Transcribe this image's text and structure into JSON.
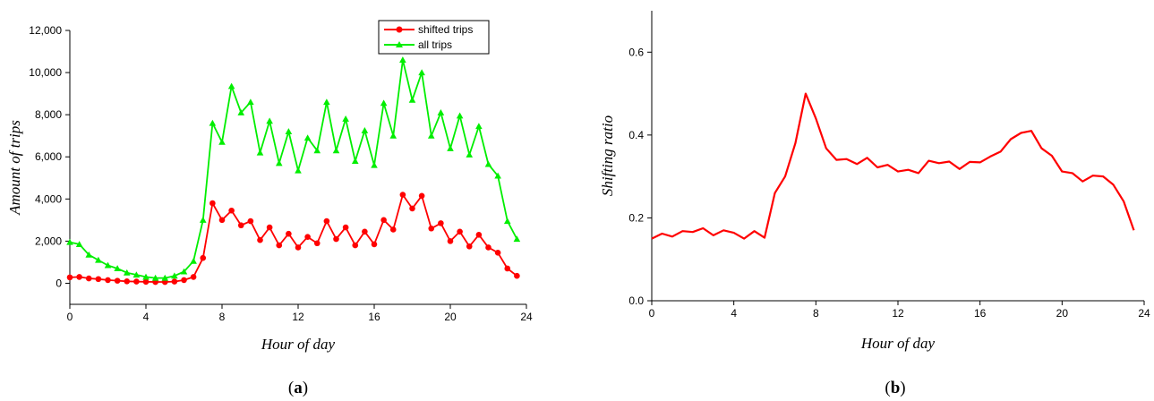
{
  "colors": {
    "shifted": "#ff0000",
    "all": "#00ee00",
    "ratio": "#ff0000"
  },
  "panels": {
    "a": "a",
    "b": "b"
  },
  "chart_data": [
    {
      "id": "a",
      "type": "line",
      "xlabel": "Hour of day",
      "ylabel": "Amount of trips",
      "xlim": [
        0,
        24
      ],
      "ylim": [
        -1000,
        12000
      ],
      "xticks": [
        0,
        4,
        8,
        12,
        16,
        20,
        24
      ],
      "yticks": [
        0,
        2000,
        4000,
        6000,
        8000,
        10000,
        12000
      ],
      "ytick_labels": [
        "0",
        "2,000",
        "4,000",
        "6,000",
        "8,000",
        "10,000",
        "12,000"
      ],
      "grid": false,
      "legend": "top-center",
      "series": [
        {
          "name": "shifted trips",
          "marker": "circle",
          "color": "#ff0000",
          "x": [
            0,
            0.5,
            1,
            1.5,
            2,
            2.5,
            3,
            3.5,
            4,
            4.5,
            5,
            5.5,
            6,
            6.5,
            7,
            7.5,
            8,
            8.5,
            9,
            9.5,
            10,
            10.5,
            11,
            11.5,
            12,
            12.5,
            13,
            13.5,
            14,
            14.5,
            15,
            15.5,
            16,
            16.5,
            17,
            17.5,
            18,
            18.5,
            19,
            19.5,
            20,
            20.5,
            21,
            21.5,
            22,
            22.5,
            23,
            23.5
          ],
          "values": [
            280,
            300,
            230,
            200,
            150,
            120,
            90,
            80,
            70,
            60,
            60,
            80,
            150,
            300,
            1200,
            3800,
            3000,
            3450,
            2750,
            2950,
            2050,
            2650,
            1800,
            2350,
            1700,
            2200,
            1900,
            2950,
            2100,
            2650,
            1800,
            2450,
            1850,
            3000,
            2550,
            4200,
            3550,
            4150,
            2600,
            2850,
            2000,
            2450,
            1750,
            2300,
            1700,
            1450,
            700,
            350
          ]
        },
        {
          "name": "all trips",
          "marker": "triangle",
          "color": "#00ee00",
          "x": [
            0,
            0.5,
            1,
            1.5,
            2,
            2.5,
            3,
            3.5,
            4,
            4.5,
            5,
            5.5,
            6,
            6.5,
            7,
            7.5,
            8,
            8.5,
            9,
            9.5,
            10,
            10.5,
            11,
            11.5,
            12,
            12.5,
            13,
            13.5,
            14,
            14.5,
            15,
            15.5,
            16,
            16.5,
            17,
            17.5,
            18,
            18.5,
            19,
            19.5,
            20,
            20.5,
            21,
            21.5,
            22,
            22.5,
            23,
            23.5
          ],
          "values": [
            1950,
            1850,
            1350,
            1100,
            850,
            700,
            500,
            400,
            300,
            250,
            250,
            350,
            550,
            1050,
            3000,
            7600,
            6700,
            9350,
            8100,
            8600,
            6200,
            7700,
            5700,
            7200,
            5350,
            6900,
            6300,
            8600,
            6300,
            7800,
            5800,
            7250,
            5600,
            8550,
            7000,
            10600,
            8700,
            10000,
            7000,
            8100,
            6400,
            7950,
            6100,
            7450,
            5650,
            5100,
            2950,
            2100
          ]
        }
      ]
    },
    {
      "id": "b",
      "type": "line",
      "xlabel": "Hour of day",
      "ylabel": "Shifting ratio",
      "xlim": [
        0,
        24
      ],
      "ylim": [
        0,
        0.7
      ],
      "xticks": [
        0,
        4,
        8,
        12,
        16,
        20,
        24
      ],
      "yticks": [
        0,
        0.2,
        0.4,
        0.6
      ],
      "ytick_labels": [
        "0.0",
        "0.2",
        "0.4",
        "0.6"
      ],
      "grid": false,
      "series": [
        {
          "color": "#ff0000",
          "x": [
            0,
            0.5,
            1,
            1.5,
            2,
            2.5,
            3,
            3.5,
            4,
            4.5,
            5,
            5.5,
            6,
            6.5,
            7,
            7.5,
            8,
            8.5,
            9,
            9.5,
            10,
            10.5,
            11,
            11.5,
            12,
            12.5,
            13,
            13.5,
            14,
            14.5,
            15,
            15.5,
            16,
            16.5,
            17,
            17.5,
            18,
            18.5,
            19,
            19.5,
            20,
            20.5,
            21,
            21.5,
            22,
            22.5,
            23,
            23.5
          ],
          "values": [
            0.15,
            0.162,
            0.155,
            0.168,
            0.166,
            0.175,
            0.158,
            0.17,
            0.164,
            0.15,
            0.168,
            0.152,
            0.26,
            0.3,
            0.38,
            0.5,
            0.44,
            0.368,
            0.34,
            0.342,
            0.33,
            0.345,
            0.322,
            0.328,
            0.312,
            0.316,
            0.308,
            0.338,
            0.332,
            0.336,
            0.318,
            0.335,
            0.334,
            0.348,
            0.36,
            0.39,
            0.405,
            0.41,
            0.368,
            0.35,
            0.312,
            0.308,
            0.288,
            0.302,
            0.3,
            0.28,
            0.24,
            0.17
          ]
        }
      ]
    }
  ]
}
